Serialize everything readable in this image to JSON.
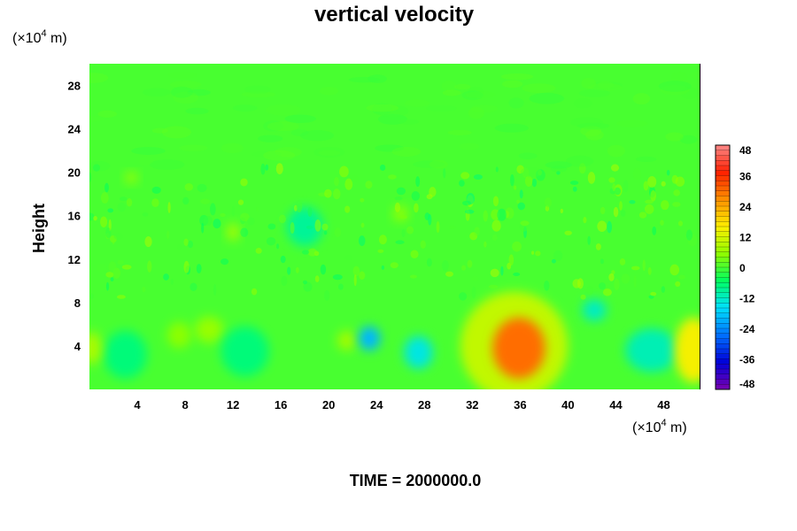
{
  "chart_data": {
    "type": "heatmap",
    "title": "vertical velocity",
    "ylabel": "Height",
    "xlabel": "",
    "x_unit": {
      "prefix": "(×10",
      "exp": "4",
      "suffix": " m)"
    },
    "y_unit": {
      "prefix": "(×10",
      "exp": "4",
      "suffix": " m)"
    },
    "xlim": [
      0,
      51
    ],
    "ylim": [
      0,
      30
    ],
    "x_ticks": [
      "4",
      "8",
      "12",
      "16",
      "20",
      "24",
      "28",
      "32",
      "36",
      "40",
      "44",
      "48"
    ],
    "y_ticks": [
      "4",
      "8",
      "12",
      "16",
      "20",
      "24",
      "28"
    ],
    "colorbar": {
      "min": -48,
      "max": 48,
      "labels": [
        "48",
        "36",
        "24",
        "12",
        "0",
        "-12",
        "-24",
        "-36",
        "-48"
      ],
      "stops": [
        "#7a00b0",
        "#0000d8",
        "#0070ff",
        "#00e0ff",
        "#00ff60",
        "#90ff00",
        "#ffee00",
        "#ff9000",
        "#ff2000",
        "#ff8a8a"
      ]
    },
    "features": [
      {
        "x": 35.9,
        "y": 3.8,
        "sx": 2.2,
        "sy": 2.8,
        "value": 30
      },
      {
        "x": 35.5,
        "y": 4.0,
        "sx": 4.5,
        "sy": 5.0,
        "value": 10
      },
      {
        "x": 50.5,
        "y": 3.6,
        "sx": 1.6,
        "sy": 3.0,
        "value": 15
      },
      {
        "x": 23.4,
        "y": 4.7,
        "sx": 0.9,
        "sy": 1.1,
        "value": -20
      },
      {
        "x": 27.5,
        "y": 3.4,
        "sx": 1.2,
        "sy": 1.5,
        "value": -14
      },
      {
        "x": 47.0,
        "y": 3.6,
        "sx": 2.2,
        "sy": 2.0,
        "value": -11
      },
      {
        "x": 42.2,
        "y": 7.3,
        "sx": 1.0,
        "sy": 1.0,
        "value": -12
      },
      {
        "x": 13.0,
        "y": 3.5,
        "sx": 2.0,
        "sy": 2.3,
        "value": -7
      },
      {
        "x": 3.0,
        "y": 3.2,
        "sx": 1.8,
        "sy": 2.2,
        "value": -7
      },
      {
        "x": 18.0,
        "y": 15.0,
        "sx": 1.5,
        "sy": 1.8,
        "value": -9
      },
      {
        "x": 10.0,
        "y": 5.5,
        "sx": 1.2,
        "sy": 1.2,
        "value": 6
      },
      {
        "x": 7.5,
        "y": 5.0,
        "sx": 1.0,
        "sy": 1.2,
        "value": 5
      },
      {
        "x": 21.5,
        "y": 4.5,
        "sx": 0.8,
        "sy": 0.9,
        "value": 7
      },
      {
        "x": 0.2,
        "y": 3.8,
        "sx": 0.8,
        "sy": 1.5,
        "value": 8
      },
      {
        "x": 12.0,
        "y": 14.5,
        "sx": 0.5,
        "sy": 0.8,
        "value": 8
      },
      {
        "x": 3.5,
        "y": 19.5,
        "sx": 0.5,
        "sy": 0.5,
        "value": 7
      },
      {
        "x": 26.0,
        "y": 16.2,
        "sx": 0.6,
        "sy": 0.7,
        "value": 6
      }
    ]
  },
  "footer": {
    "time_label": "TIME = 2000000.0"
  }
}
